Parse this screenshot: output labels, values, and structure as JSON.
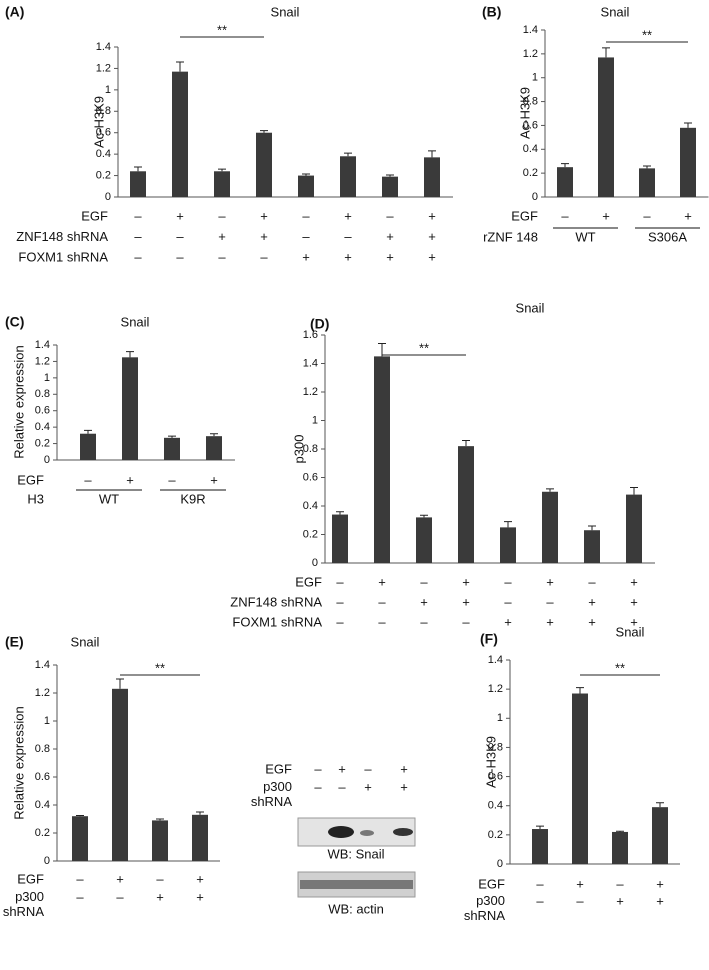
{
  "chart_data": [
    {
      "type": "bar",
      "panel": "(A)",
      "title": "Snail",
      "y_label": "Ac-H3K9",
      "color": "#3a3a3a",
      "categories": [
        null,
        null,
        null,
        null,
        null,
        null,
        null,
        null
      ],
      "values": [
        0.24,
        1.17,
        0.24,
        0.6,
        0.2,
        0.38,
        0.19,
        0.37
      ],
      "errors": [
        0.04,
        0.09,
        0.02,
        0.02,
        0.015,
        0.03,
        0.015,
        0.06
      ],
      "ylim": [
        0,
        1.4
      ],
      "yticks": [
        0,
        0.2,
        0.4,
        0.6,
        0.8,
        1,
        1.2,
        1.4
      ],
      "annotation": "**",
      "conditions": [
        {
          "name": "EGF",
          "signs": [
            "–",
            "+",
            "–",
            "+",
            "–",
            "+",
            "–",
            "+"
          ]
        },
        {
          "name": "ZNF148 shRNA",
          "signs": [
            "–",
            "–",
            "+",
            "+",
            "–",
            "–",
            "+",
            "+"
          ]
        },
        {
          "name": "FOXM1 shRNA",
          "signs": [
            "–",
            "–",
            "–",
            "–",
            "+",
            "+",
            "+",
            "+"
          ]
        }
      ]
    },
    {
      "type": "bar",
      "panel": "(B)",
      "title": "Snail",
      "y_label": "Ac-H3K9",
      "color": "#3a3a3a",
      "categories": [
        null,
        null,
        null,
        null
      ],
      "values": [
        0.25,
        1.17,
        0.24,
        0.58
      ],
      "errors": [
        0.03,
        0.08,
        0.02,
        0.04
      ],
      "ylim": [
        0,
        1.4
      ],
      "yticks": [
        0,
        0.2,
        0.4,
        0.6,
        0.8,
        1,
        1.2,
        1.4
      ],
      "annotation": "**",
      "conditions": [
        {
          "name": "EGF",
          "signs": [
            "–",
            "+",
            "–",
            "+"
          ]
        },
        {
          "name": "rZNF 148",
          "groups": [
            "WT",
            "S306A"
          ]
        }
      ]
    },
    {
      "type": "bar",
      "panel": "(C)",
      "title": "Snail",
      "y_label": "Relative expression",
      "color": "#3a3a3a",
      "categories": [
        null,
        null,
        null,
        null
      ],
      "values": [
        0.32,
        1.25,
        0.27,
        0.29
      ],
      "errors": [
        0.04,
        0.07,
        0.02,
        0.03
      ],
      "ylim": [
        0,
        1.4
      ],
      "yticks": [
        0,
        0.2,
        0.4,
        0.6,
        0.8,
        1,
        1.2,
        1.4
      ],
      "conditions": [
        {
          "name": "EGF",
          "signs": [
            "–",
            "+",
            "–",
            "+"
          ]
        },
        {
          "name": "H3",
          "groups": [
            "WT",
            "K9R"
          ]
        }
      ]
    },
    {
      "type": "bar",
      "panel": "(D)",
      "title": "Snail",
      "y_label": "p300",
      "color": "#3a3a3a",
      "categories": [
        null,
        null,
        null,
        null,
        null,
        null,
        null,
        null
      ],
      "values": [
        0.34,
        1.45,
        0.32,
        0.82,
        0.25,
        0.5,
        0.23,
        0.48
      ],
      "errors": [
        0.02,
        0.09,
        0.015,
        0.04,
        0.04,
        0.02,
        0.03,
        0.05
      ],
      "ylim": [
        0,
        1.6
      ],
      "yticks": [
        0,
        0.2,
        0.4,
        0.6,
        0.8,
        1,
        1.2,
        1.4,
        1.6
      ],
      "annotation": "**",
      "conditions": [
        {
          "name": "EGF",
          "signs": [
            "–",
            "+",
            "–",
            "+",
            "–",
            "+",
            "–",
            "+"
          ]
        },
        {
          "name": "ZNF148 shRNA",
          "signs": [
            "–",
            "–",
            "+",
            "+",
            "–",
            "–",
            "+",
            "+"
          ]
        },
        {
          "name": "FOXM1 shRNA",
          "signs": [
            "–",
            "–",
            "–",
            "–",
            "+",
            "+",
            "+",
            "+"
          ]
        }
      ]
    },
    {
      "type": "bar",
      "panel": "(E)",
      "title": "Snail",
      "y_label": "Relative expression",
      "color": "#3a3a3a",
      "categories": [
        null,
        null,
        null,
        null
      ],
      "values": [
        0.32,
        1.23,
        0.29,
        0.33
      ],
      "errors": [
        0.005,
        0.07,
        0.01,
        0.02
      ],
      "ylim": [
        0,
        1.4
      ],
      "yticks": [
        0,
        0.2,
        0.4,
        0.6,
        0.8,
        1,
        1.2,
        1.4
      ],
      "annotation": "**",
      "conditions": [
        {
          "name": "EGF",
          "signs": [
            "–",
            "+",
            "–",
            "+"
          ]
        },
        {
          "name": [
            "p300",
            "shRNA"
          ],
          "signs": [
            "–",
            "–",
            "+",
            "+"
          ]
        }
      ]
    },
    {
      "type": "bar",
      "panel": "(F)",
      "title": "Snail",
      "y_label": "Ac-H3K9",
      "color": "#3a3a3a",
      "categories": [
        null,
        null,
        null,
        null
      ],
      "values": [
        0.24,
        1.17,
        0.22,
        0.39
      ],
      "errors": [
        0.02,
        0.04,
        0.005,
        0.03
      ],
      "ylim": [
        0,
        1.4
      ],
      "yticks": [
        0,
        0.2,
        0.4,
        0.6,
        0.8,
        1,
        1.2,
        1.4
      ],
      "annotation": "**",
      "conditions": [
        {
          "name": "EGF",
          "signs": [
            "–",
            "+",
            "–",
            "+"
          ]
        },
        {
          "name": [
            "p300",
            "shRNA"
          ],
          "signs": [
            "–",
            "–",
            "+",
            "+"
          ]
        }
      ]
    }
  ],
  "blot": {
    "conditions": [
      {
        "name": "EGF",
        "signs": [
          "–",
          "+",
          "–",
          "+"
        ]
      },
      {
        "name": [
          "p300",
          "shRNA"
        ],
        "signs": [
          "–",
          "–",
          "+",
          "+"
        ]
      }
    ],
    "panels": [
      "WB: Snail",
      "WB: actin"
    ]
  }
}
